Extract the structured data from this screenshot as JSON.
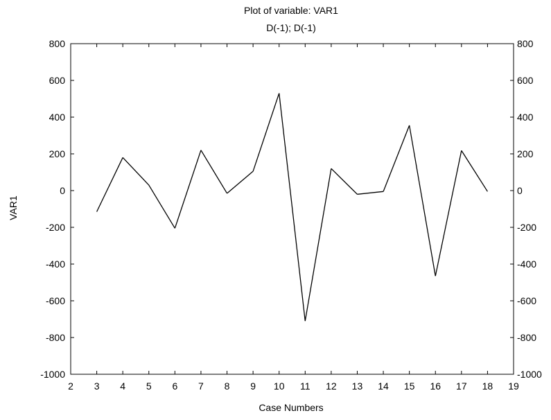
{
  "chart_data": {
    "type": "line",
    "title": "Plot of variable: VAR1",
    "subtitle": "D(-1); D(-1)",
    "xlabel": "Case Numbers",
    "ylabel": "VAR1",
    "xlim": [
      2,
      19
    ],
    "ylim": [
      -1000,
      800
    ],
    "x_ticks": [
      2,
      3,
      4,
      5,
      6,
      7,
      8,
      9,
      10,
      11,
      12,
      13,
      14,
      15,
      16,
      17,
      18,
      19
    ],
    "y_ticks": [
      -1000,
      -800,
      -600,
      -400,
      -200,
      0,
      200,
      400,
      600,
      800
    ],
    "grid": false,
    "legend": false,
    "right_axis_mirrors_left": true,
    "series": [
      {
        "x": [
          3,
          4,
          5,
          6,
          7,
          8,
          9,
          10,
          11,
          12,
          13,
          14,
          15,
          16,
          17,
          18
        ],
        "values": [
          -115,
          180,
          30,
          -205,
          220,
          -15,
          105,
          530,
          -710,
          120,
          -20,
          -5,
          355,
          -465,
          218,
          -5
        ],
        "color": "#000000"
      }
    ]
  }
}
